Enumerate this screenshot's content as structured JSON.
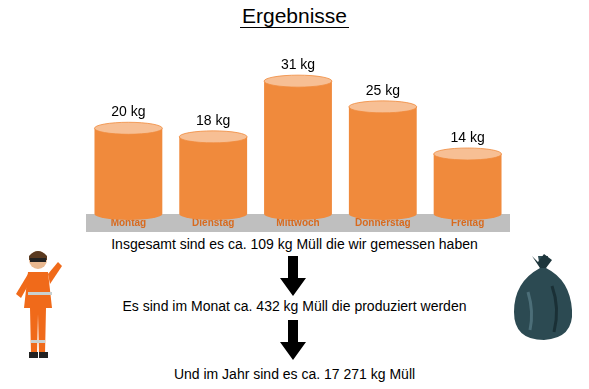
{
  "chart_data": {
    "type": "bar",
    "title": "Ergebnisse",
    "categories": [
      "Montag",
      "Dienstag",
      "Mittwoch",
      "Donnerstag",
      "Freitag"
    ],
    "values": [
      20,
      18,
      31,
      25,
      14
    ],
    "value_labels": [
      "20 kg",
      "18 kg",
      "31 kg",
      "25 kg",
      "14 kg"
    ],
    "color": "#f08a3c",
    "data_labels": true,
    "tick_labels": "x",
    "grid": false,
    "annotations": [
      "Insgesamt sind es ca. 109 kg Müll die wir gemessen haben",
      "Es sind im Monat ca. 432 kg Müll die produziert werden",
      "Und im Jahr sind es ca. 17 271 kg Müll"
    ]
  }
}
